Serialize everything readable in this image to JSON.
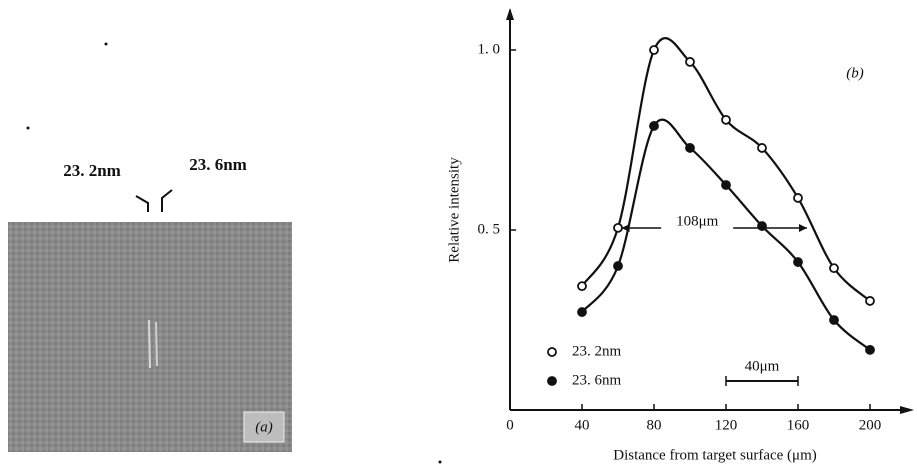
{
  "panel_a": {
    "label": "(a)",
    "line_labels": [
      "23. 2nm",
      "23. 6nm"
    ]
  },
  "chart_data": {
    "type": "line",
    "xlabel": "Distance from target surface (μm)",
    "ylabel": "Relative intensity",
    "x": [
      40,
      60,
      80,
      100,
      120,
      140,
      160,
      180,
      200
    ],
    "series": [
      {
        "name": "23. 2nm",
        "color": "#111111",
        "marker": "open",
        "values": [
          0.344,
          0.506,
          1.0,
          0.967,
          0.806,
          0.728,
          0.589,
          0.394,
          0.303
        ]
      },
      {
        "name": "23. 6nm",
        "color": "#111111",
        "marker": "filled",
        "values": [
          0.272,
          0.4,
          0.789,
          0.728,
          0.625,
          0.511,
          0.411,
          0.25,
          0.167
        ]
      }
    ],
    "xlim": [
      0,
      220
    ],
    "xticks": [
      0,
      40,
      80,
      120,
      160,
      200
    ],
    "ylim": [
      0,
      1.1
    ],
    "yticks": [
      {
        "value": 0.5,
        "label": "0. 5"
      },
      {
        "value": 1,
        "label": "1. 0"
      }
    ],
    "annotations": [
      "(b)",
      "108μm",
      "40μm"
    ]
  }
}
